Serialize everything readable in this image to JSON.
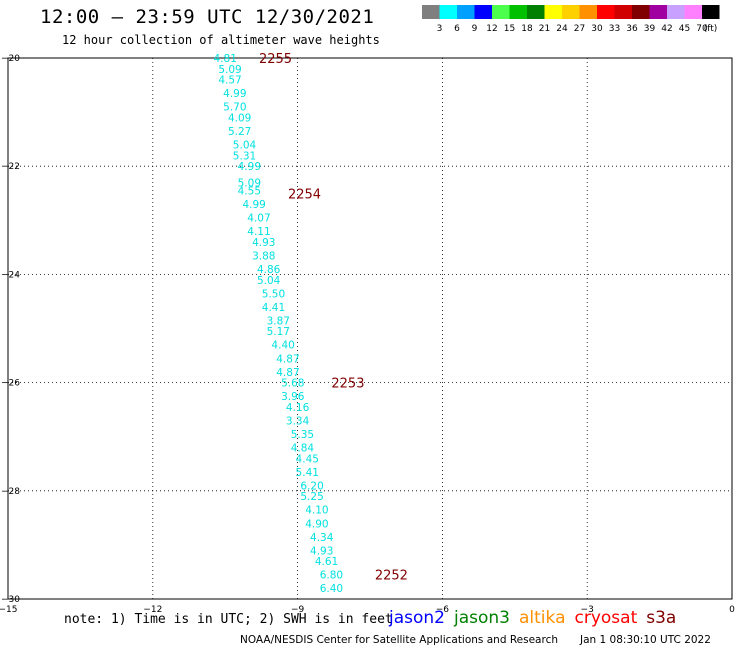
{
  "header": {
    "title": "12:00 – 23:59 UTC 12/30/2021",
    "subtitle": "12 hour collection of altimeter wave heights"
  },
  "colorbar": {
    "unit": "(ft)",
    "bins": [
      {
        "label": "3",
        "color": "#7f7f7f"
      },
      {
        "label": "6",
        "color": "#00ffff"
      },
      {
        "label": "9",
        "color": "#00a0ff"
      },
      {
        "label": "12",
        "color": "#0000ff"
      },
      {
        "label": "15",
        "color": "#4cff4c"
      },
      {
        "label": "18",
        "color": "#00c000"
      },
      {
        "label": "21",
        "color": "#008000"
      },
      {
        "label": "24",
        "color": "#ffff00"
      },
      {
        "label": "27",
        "color": "#ffd000"
      },
      {
        "label": "30",
        "color": "#ff9000"
      },
      {
        "label": "33",
        "color": "#ff0000"
      },
      {
        "label": "36",
        "color": "#d00000"
      },
      {
        "label": "39",
        "color": "#800000"
      },
      {
        "label": "42",
        "color": "#a000a0"
      },
      {
        "label": "45",
        "color": "#c8a0ff"
      },
      {
        "label": "70",
        "color": "#ff80ff"
      },
      {
        "label": "",
        "color": "#000000"
      }
    ]
  },
  "chart_data": {
    "type": "scatter",
    "xlim": [
      -15,
      0
    ],
    "ylim": [
      -30,
      -20
    ],
    "xticks": [
      -15,
      -12,
      -9,
      -6,
      -3,
      0
    ],
    "yticks": [
      -20,
      -22,
      -24,
      -26,
      -28,
      -30
    ],
    "grid": true,
    "point_color": "#00e0e0",
    "time_color": "#800000",
    "points": [
      {
        "x": -10.5,
        "y": -20.0,
        "label": "4.81"
      },
      {
        "x": -10.4,
        "y": -20.2,
        "label": "5.09"
      },
      {
        "x": -10.4,
        "y": -20.4,
        "label": "4.57"
      },
      {
        "x": -10.3,
        "y": -20.65,
        "label": "4.99"
      },
      {
        "x": -10.3,
        "y": -20.9,
        "label": "5.70"
      },
      {
        "x": -10.2,
        "y": -21.1,
        "label": "4.09"
      },
      {
        "x": -10.2,
        "y": -21.35,
        "label": "5.27"
      },
      {
        "x": -10.1,
        "y": -21.6,
        "label": "5.04"
      },
      {
        "x": -10.1,
        "y": -21.8,
        "label": "5.31"
      },
      {
        "x": -10.0,
        "y": -22.0,
        "label": "4.99"
      },
      {
        "x": -10.0,
        "y": -22.3,
        "label": "5.09"
      },
      {
        "x": -10.0,
        "y": -22.45,
        "label": "4.55"
      },
      {
        "x": -9.9,
        "y": -22.7,
        "label": "4.99"
      },
      {
        "x": -9.8,
        "y": -22.95,
        "label": "4.07"
      },
      {
        "x": -9.8,
        "y": -23.2,
        "label": "4.11"
      },
      {
        "x": -9.7,
        "y": -23.4,
        "label": "4.93"
      },
      {
        "x": -9.7,
        "y": -23.65,
        "label": "3.88"
      },
      {
        "x": -9.6,
        "y": -23.9,
        "label": "4.86"
      },
      {
        "x": -9.6,
        "y": -24.1,
        "label": "5.04"
      },
      {
        "x": -9.5,
        "y": -24.35,
        "label": "5.50"
      },
      {
        "x": -9.5,
        "y": -24.6,
        "label": "4.41"
      },
      {
        "x": -9.4,
        "y": -24.85,
        "label": "3.87"
      },
      {
        "x": -9.4,
        "y": -25.05,
        "label": "5.17"
      },
      {
        "x": -9.3,
        "y": -25.3,
        "label": "4.40"
      },
      {
        "x": -9.2,
        "y": -25.55,
        "label": "4.87"
      },
      {
        "x": -9.2,
        "y": -25.8,
        "label": "4.87"
      },
      {
        "x": -9.1,
        "y": -26.0,
        "label": "5.68"
      },
      {
        "x": -9.1,
        "y": -26.25,
        "label": "3.96"
      },
      {
        "x": -9.0,
        "y": -26.45,
        "label": "4.16"
      },
      {
        "x": -9.0,
        "y": -26.7,
        "label": "3.34"
      },
      {
        "x": -8.9,
        "y": -26.95,
        "label": "5.35"
      },
      {
        "x": -8.9,
        "y": -27.2,
        "label": "4.84"
      },
      {
        "x": -8.8,
        "y": -27.4,
        "label": "4.45"
      },
      {
        "x": -8.8,
        "y": -27.65,
        "label": "5.41"
      },
      {
        "x": -8.7,
        "y": -27.9,
        "label": "6.20"
      },
      {
        "x": -8.7,
        "y": -28.1,
        "label": "5.25"
      },
      {
        "x": -8.6,
        "y": -28.35,
        "label": "4.10"
      },
      {
        "x": -8.6,
        "y": -28.6,
        "label": "4.90"
      },
      {
        "x": -8.5,
        "y": -28.85,
        "label": "4.34"
      },
      {
        "x": -8.5,
        "y": -29.1,
        "label": "4.93"
      },
      {
        "x": -8.4,
        "y": -29.3,
        "label": "4.61"
      },
      {
        "x": -8.3,
        "y": -29.55,
        "label": "6.80"
      },
      {
        "x": -8.3,
        "y": -29.8,
        "label": "6.40"
      }
    ],
    "time_labels": [
      {
        "x": -9.8,
        "y": -20.0,
        "label": "2255"
      },
      {
        "x": -9.2,
        "y": -22.5,
        "label": "2254"
      },
      {
        "x": -8.3,
        "y": -26.0,
        "label": "2253"
      },
      {
        "x": -7.4,
        "y": -29.55,
        "label": "2252"
      }
    ]
  },
  "footer": {
    "note": "note: 1) Time is in UTC; 2) SWH is in feet",
    "satellites": [
      {
        "name": "jason2",
        "color": "#0000ff"
      },
      {
        "name": "jason3",
        "color": "#008000"
      },
      {
        "name": "altika",
        "color": "#ff9000"
      },
      {
        "name": "cryosat",
        "color": "#ff0000"
      },
      {
        "name": "s3a",
        "color": "#800000"
      }
    ],
    "credit": "NOAA/NESDIS Center for Satellite Applications and Research",
    "generated": "Jan  1 08:30:10 UTC 2022"
  }
}
